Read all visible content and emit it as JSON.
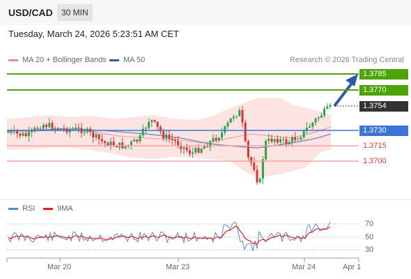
{
  "header": {
    "pair": "USD/CAD",
    "timeframe": "30 MIN"
  },
  "timestamp": "Tuesday, March 24, 2026 5:23:51 AM CET",
  "legend": {
    "ma20": "MA 20 + Bollinger Bands",
    "ma20_color": "#f08a8a",
    "ma50": "MA 50",
    "ma50_color": "#34589e",
    "rsi": "RSI",
    "rsi_color": "#5b86d6",
    "ma9": "9MA",
    "ma9_color": "#e02020"
  },
  "credit": "Research © 2026 Trading Central",
  "levels": {
    "r2": "1.3785",
    "r1": "1.3770",
    "last": "1.3754",
    "pivot": "1.3730",
    "s1": "1.3715",
    "s2": "1.3700",
    "r_color": "#4ea30b",
    "s_color": "#f07070",
    "pivot_color": "#3c74d8",
    "last_color": "#333333"
  },
  "rsi_axis": [
    "70",
    "50",
    "30"
  ],
  "x_axis": [
    "Mar 20",
    "Mar 23",
    "Mar 24",
    "Apr 1"
  ]
}
